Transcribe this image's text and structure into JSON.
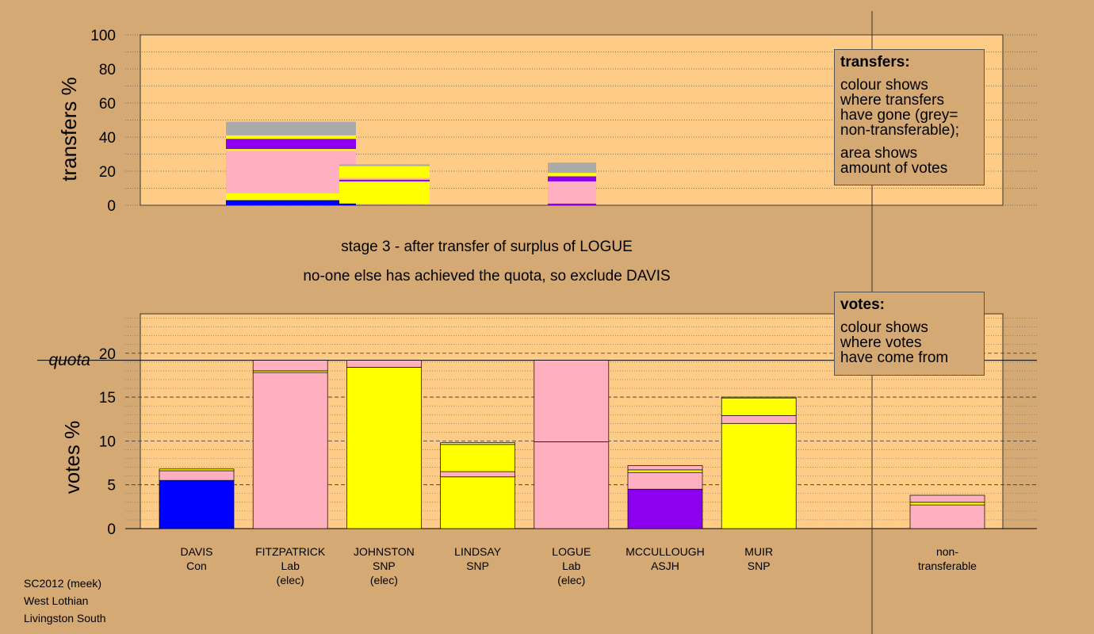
{
  "stage_title": "stage 3 - after transfer of surplus of LOGUE",
  "stage_subtitle": "no-one else has achieved the quota, so exclude DAVIS",
  "footer": {
    "line1": "SC2012 (meek)",
    "line2": "West Lothian",
    "line3": "Livingston South"
  },
  "legend_transfers": {
    "title": "transfers:",
    "line1": "colour shows\nwhere transfers\nhave gone (grey=\nnon-transferable);",
    "line2": "area shows\namount of votes"
  },
  "legend_votes": {
    "title": "votes:",
    "line1": "colour shows\nwhere votes\nhave come from"
  },
  "colors": {
    "background": "#d4a974",
    "plot_bg": "#ffcc88",
    "Con": "#0000ff",
    "Lab": "#ffb0c0",
    "SNP": "#ffff00",
    "ASJH": "#8b00ee",
    "non_transferable": "#aaaaaa"
  },
  "chart_data": [
    {
      "type": "bar",
      "subtype": "stacked transfer blocks",
      "ylabel": "transfers %",
      "ylim": [
        0,
        100
      ],
      "yticks": [
        0,
        20,
        40,
        60,
        80,
        100
      ],
      "grid": true,
      "blocks": [
        {
          "candidate": "DAVIS",
          "segments": [
            {
              "color": "Con",
              "from": 0,
              "to": 3
            },
            {
              "color": "SNP",
              "from": 3,
              "to": 7
            },
            {
              "color": "Lab",
              "from": 7,
              "to": 32
            },
            {
              "color": "SNP",
              "from": 32,
              "to": 33
            },
            {
              "color": "ASJH",
              "from": 33,
              "to": 39
            },
            {
              "color": "SNP",
              "from": 39,
              "to": 41
            },
            {
              "color": "non_transferable",
              "from": 41,
              "to": 49
            }
          ]
        },
        {
          "candidate": "FITZPATRICK",
          "segments": [
            {
              "color": "SNP",
              "from": 1,
              "to": 14
            },
            {
              "color": "ASJH",
              "from": 14,
              "to": 15
            },
            {
              "color": "Lab",
              "from": 15,
              "to": 16
            },
            {
              "color": "SNP",
              "from": 16,
              "to": 23
            },
            {
              "color": "non_transferable",
              "from": 23,
              "to": 24
            }
          ]
        },
        {
          "candidate": "LOGUE",
          "segments": [
            {
              "color": "ASJH",
              "from": 0,
              "to": 1
            },
            {
              "color": "Lab",
              "from": 1,
              "to": 12
            },
            {
              "color": "Lab",
              "from": 12,
              "to": 14
            },
            {
              "color": "ASJH",
              "from": 14,
              "to": 17
            },
            {
              "color": "SNP",
              "from": 17,
              "to": 19
            },
            {
              "color": "non_transferable",
              "from": 19,
              "to": 25
            }
          ]
        }
      ]
    },
    {
      "type": "bar",
      "subtype": "stacked",
      "ylabel": "votes %",
      "ylim": [
        0,
        24.5
      ],
      "yticks": [
        0,
        5,
        10,
        15,
        20
      ],
      "quota": 19.2,
      "quota_label": "quota",
      "grid": true,
      "categories": [
        {
          "name": "DAVIS",
          "party": "Con",
          "elected": "",
          "segments": [
            {
              "color": "Con",
              "value": 5.5
            },
            {
              "color": "Lab",
              "value": 1.1
            },
            {
              "color": "SNP",
              "value": 0.2
            }
          ]
        },
        {
          "name": "FITZPATRICK",
          "party": "Lab",
          "elected": "(elec)",
          "segments": [
            {
              "color": "Lab",
              "value": 17.8
            },
            {
              "color": "SNP",
              "value": 0.2
            },
            {
              "color": "Lab",
              "value": 1.2
            }
          ]
        },
        {
          "name": "JOHNSTON",
          "party": "SNP",
          "elected": "(elec)",
          "segments": [
            {
              "color": "SNP",
              "value": 18.4
            },
            {
              "color": "Lab",
              "value": 0.8
            }
          ]
        },
        {
          "name": "LINDSAY",
          "party": "SNP",
          "elected": "",
          "segments": [
            {
              "color": "SNP",
              "value": 5.9
            },
            {
              "color": "Lab",
              "value": 0.6
            },
            {
              "color": "SNP",
              "value": 3.1
            },
            {
              "color": "SNP",
              "value": 0.2
            }
          ]
        },
        {
          "name": "LOGUE",
          "party": "Lab",
          "elected": "(elec)",
          "segments": [
            {
              "color": "Lab",
              "value": 9.9
            },
            {
              "color": "Lab",
              "value": 9.3
            }
          ]
        },
        {
          "name": "MCCULLOUGH",
          "party": "ASJH",
          "elected": "",
          "segments": [
            {
              "color": "ASJH",
              "value": 4.5
            },
            {
              "color": "Lab",
              "value": 1.9
            },
            {
              "color": "SNP",
              "value": 0.3
            },
            {
              "color": "Lab",
              "value": 0.5
            }
          ]
        },
        {
          "name": "MUIR",
          "party": "SNP",
          "elected": "",
          "segments": [
            {
              "color": "SNP",
              "value": 12.0
            },
            {
              "color": "Lab",
              "value": 0.9
            },
            {
              "color": "SNP",
              "value": 2.0
            },
            {
              "color": "SNP",
              "value": 0.1
            }
          ]
        }
      ],
      "non_transferable": {
        "label1": "non-",
        "label2": "transferable",
        "segments": [
          {
            "color": "Lab",
            "value": 2.7
          },
          {
            "color": "SNP",
            "value": 0.3
          },
          {
            "color": "Lab",
            "value": 0.8
          }
        ]
      }
    }
  ]
}
